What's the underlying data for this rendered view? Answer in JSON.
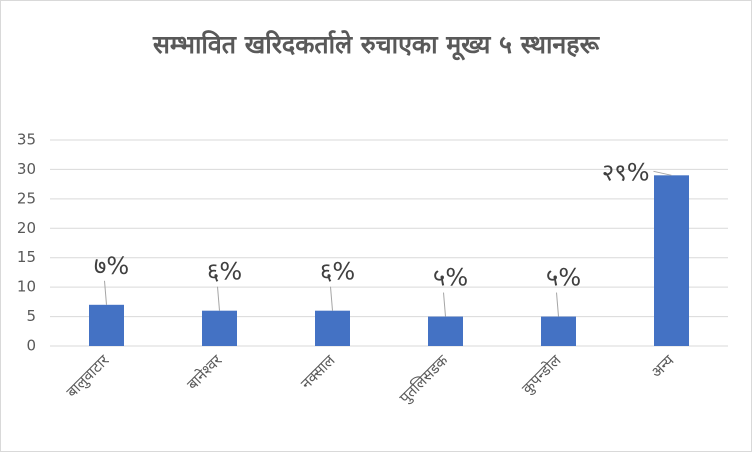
{
  "chart_data": {
    "type": "bar",
    "title": "सम्भावित खरिदकर्ताले रुचाएका मूख्य ५ स्थानहरू",
    "categories": [
      "बालुवाटार",
      "बानेश्वर",
      "नक्साल",
      "पुतलिसडक",
      "कुपन्डोल",
      "अन्य"
    ],
    "values": [
      7,
      6,
      6,
      5,
      5,
      29
    ],
    "value_labels": [
      "७%",
      "६%",
      "६%",
      "५%",
      "५%",
      "२९%"
    ],
    "color": "#4472c4",
    "ylim": [
      0,
      35
    ],
    "yticks": [
      0,
      5,
      10,
      15,
      20,
      25,
      30,
      35
    ],
    "grid": true
  }
}
